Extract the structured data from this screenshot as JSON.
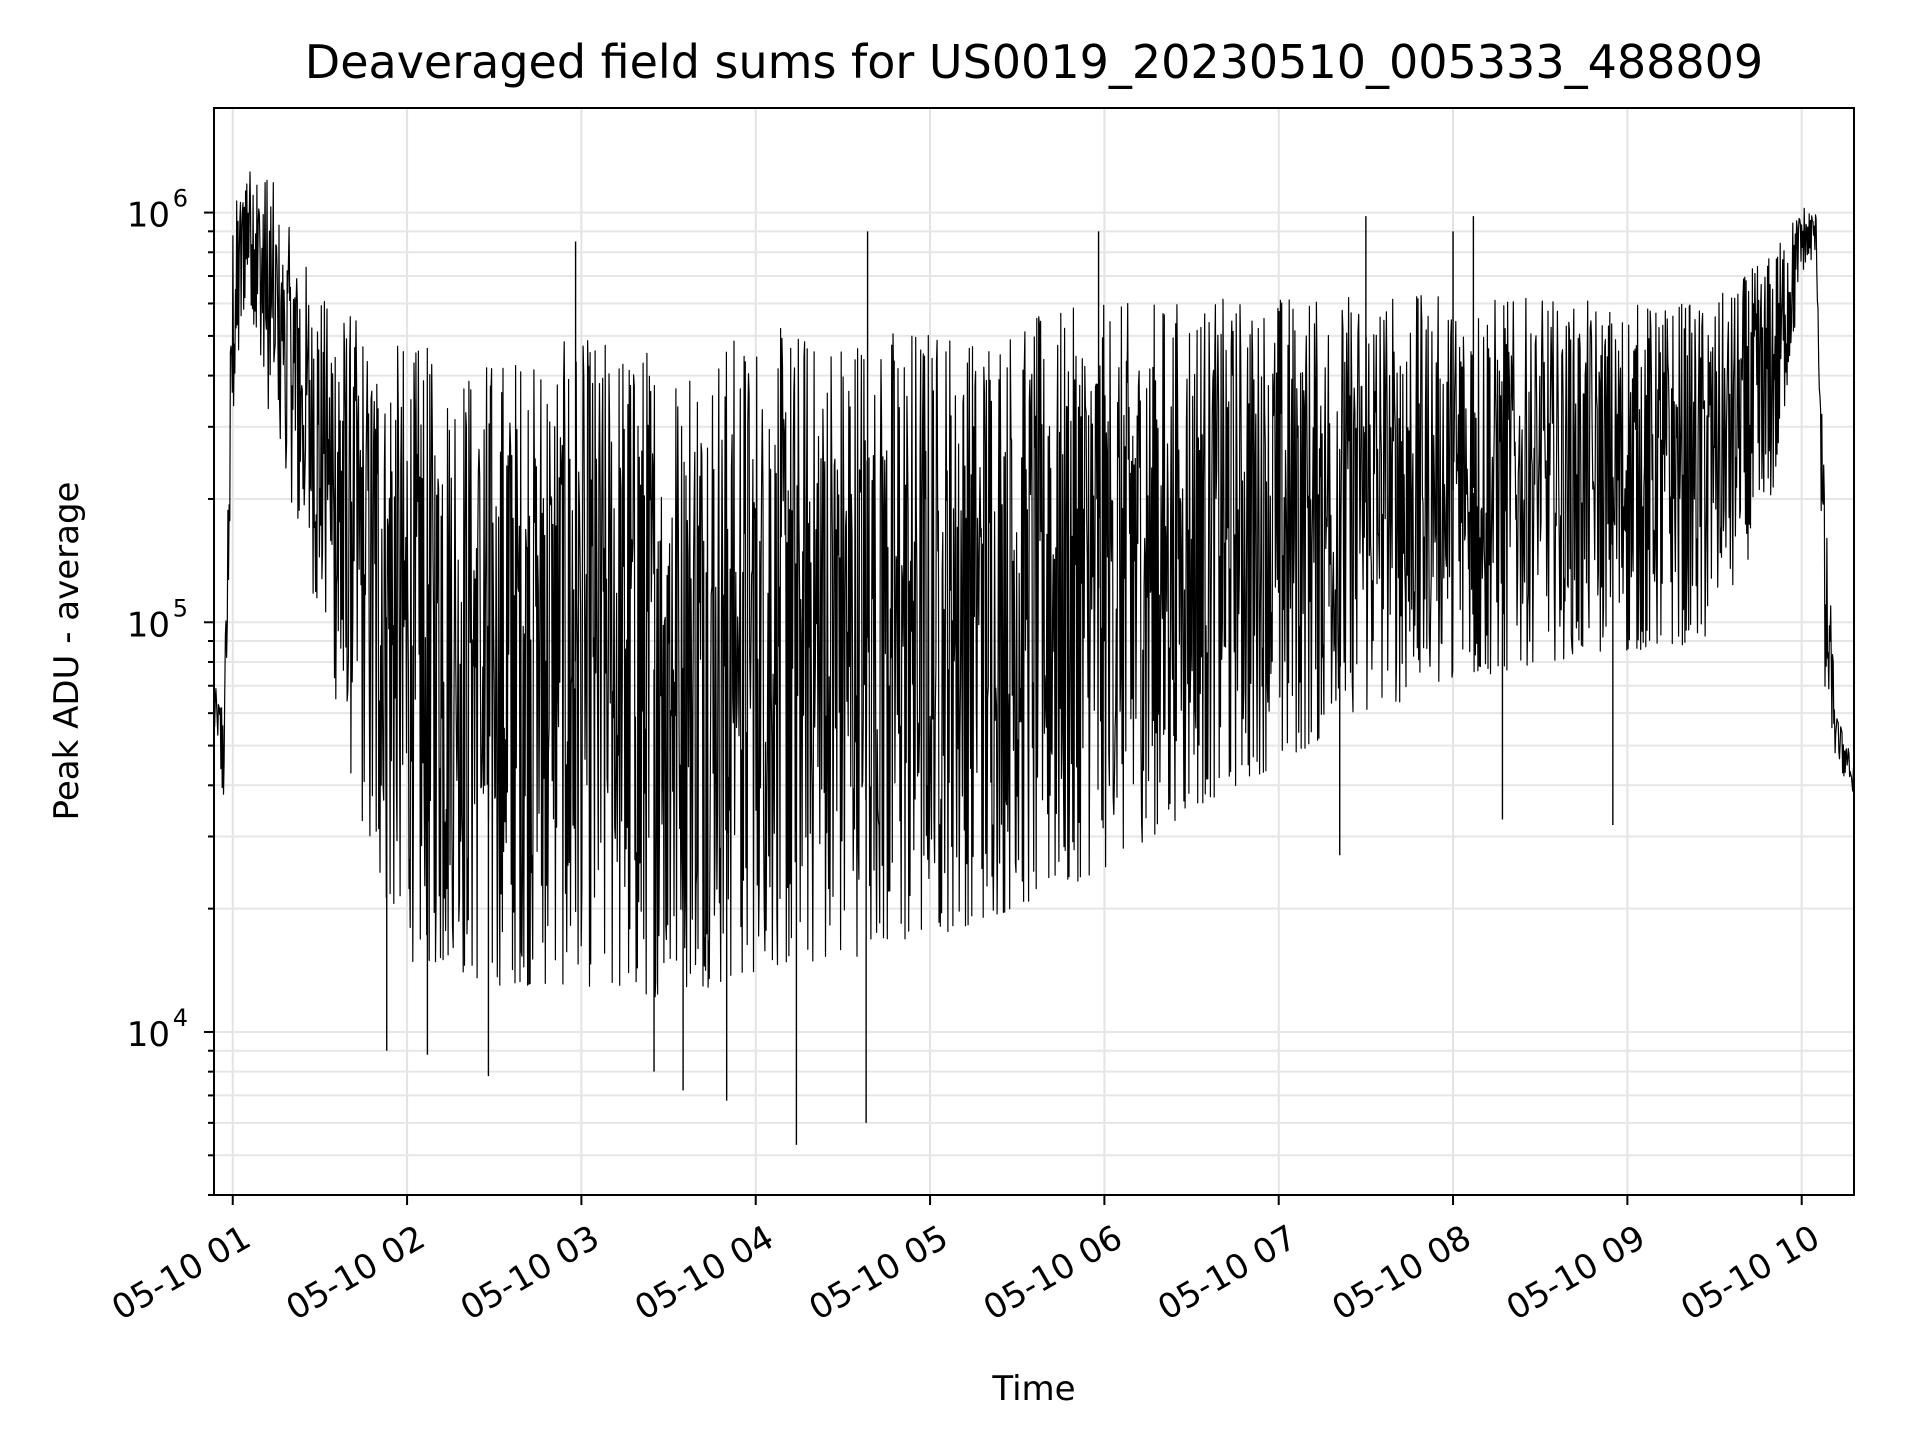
{
  "chart_data": {
    "type": "line",
    "title": "Deaveraged field sums for US0019_20230510_005333_488809",
    "xlabel": "Time",
    "ylabel": "Peak ADU - average",
    "y_scale": "log",
    "ylim": [
      4000,
      1800000
    ],
    "xlim": [
      "2023-05-10T00:53:33",
      "2023-05-10T10:18:00"
    ],
    "grid": true,
    "x_ticks": [
      {
        "t": "2023-05-10T01:00",
        "label": "05-10 01"
      },
      {
        "t": "2023-05-10T02:00",
        "label": "05-10 02"
      },
      {
        "t": "2023-05-10T03:00",
        "label": "05-10 03"
      },
      {
        "t": "2023-05-10T04:00",
        "label": "05-10 04"
      },
      {
        "t": "2023-05-10T05:00",
        "label": "05-10 05"
      },
      {
        "t": "2023-05-10T06:00",
        "label": "05-10 06"
      },
      {
        "t": "2023-05-10T07:00",
        "label": "05-10 07"
      },
      {
        "t": "2023-05-10T08:00",
        "label": "05-10 08"
      },
      {
        "t": "2023-05-10T09:00",
        "label": "05-10 09"
      },
      {
        "t": "2023-05-10T10:00",
        "label": "05-10 10"
      }
    ],
    "y_ticks": [
      {
        "value": 10000,
        "base": "10",
        "exp": "4"
      },
      {
        "value": 100000,
        "base": "10",
        "exp": "5"
      },
      {
        "value": 1000000,
        "base": "10",
        "exp": "6"
      }
    ],
    "series": [
      {
        "color": "#000000",
        "envelope": [
          {
            "t": "2023-05-10T00:53:33",
            "low": 55000,
            "high": 70000
          },
          {
            "t": "2023-05-10T00:57:00",
            "low": 35000,
            "high": 65000
          },
          {
            "t": "2023-05-10T01:00:00",
            "low": 300000,
            "high": 1000000
          },
          {
            "t": "2023-05-10T01:05:00",
            "low": 700000,
            "high": 1350000
          },
          {
            "t": "2023-05-10T01:12:00",
            "low": 300000,
            "high": 1300000
          },
          {
            "t": "2023-05-10T01:20:00",
            "low": 200000,
            "high": 900000
          },
          {
            "t": "2023-05-10T01:30:00",
            "low": 100000,
            "high": 650000
          },
          {
            "t": "2023-05-10T01:45:00",
            "low": 30000,
            "high": 550000
          },
          {
            "t": "2023-05-10T02:00:00",
            "low": 15000,
            "high": 480000
          },
          {
            "t": "2023-05-10T02:30:00",
            "low": 13000,
            "high": 450000
          },
          {
            "t": "2023-05-10T03:00:00",
            "low": 13000,
            "high": 500000
          },
          {
            "t": "2023-05-10T03:30:00",
            "low": 12000,
            "high": 480000
          },
          {
            "t": "2023-05-10T04:00:00",
            "low": 14000,
            "high": 520000
          },
          {
            "t": "2023-05-10T04:30:00",
            "low": 15000,
            "high": 540000
          },
          {
            "t": "2023-05-10T05:00:00",
            "low": 17000,
            "high": 540000
          },
          {
            "t": "2023-05-10T05:30:00",
            "low": 20000,
            "high": 560000
          },
          {
            "t": "2023-05-10T06:00:00",
            "low": 25000,
            "high": 600000
          },
          {
            "t": "2023-05-10T06:30:00",
            "low": 35000,
            "high": 620000
          },
          {
            "t": "2023-05-10T07:00:00",
            "low": 45000,
            "high": 640000
          },
          {
            "t": "2023-05-10T07:30:00",
            "low": 60000,
            "high": 640000
          },
          {
            "t": "2023-05-10T08:00:00",
            "low": 70000,
            "high": 630000
          },
          {
            "t": "2023-05-10T08:30:00",
            "low": 80000,
            "high": 620000
          },
          {
            "t": "2023-05-10T09:00:00",
            "low": 85000,
            "high": 600000
          },
          {
            "t": "2023-05-10T09:30:00",
            "low": 90000,
            "high": 620000
          },
          {
            "t": "2023-05-10T09:50:00",
            "low": 200000,
            "high": 800000
          },
          {
            "t": "2023-05-10T10:00:00",
            "low": 700000,
            "high": 1050000
          },
          {
            "t": "2023-05-10T10:05:00",
            "low": 800000,
            "high": 1000000
          },
          {
            "t": "2023-05-10T10:08:00",
            "low": 60000,
            "high": 200000
          },
          {
            "t": "2023-05-10T10:12:00",
            "low": 45000,
            "high": 60000
          },
          {
            "t": "2023-05-10T10:18:00",
            "low": 38000,
            "high": 45000
          }
        ],
        "spikes": [
          {
            "t": "2023-05-10T01:53:00",
            "value": 9000
          },
          {
            "t": "2023-05-10T02:07:00",
            "value": 8800
          },
          {
            "t": "2023-05-10T02:28:00",
            "value": 7800
          },
          {
            "t": "2023-05-10T02:58:00",
            "value": 850000
          },
          {
            "t": "2023-05-10T03:25:00",
            "value": 8000
          },
          {
            "t": "2023-05-10T03:35:00",
            "value": 7200
          },
          {
            "t": "2023-05-10T03:50:00",
            "value": 6800
          },
          {
            "t": "2023-05-10T04:14:00",
            "value": 5300
          },
          {
            "t": "2023-05-10T04:38:00",
            "value": 6000
          },
          {
            "t": "2023-05-10T04:38:30",
            "value": 900000
          },
          {
            "t": "2023-05-10T05:58:00",
            "value": 900000
          },
          {
            "t": "2023-05-10T07:21:00",
            "value": 27000
          },
          {
            "t": "2023-05-10T07:30:00",
            "value": 980000
          },
          {
            "t": "2023-05-10T08:00:00",
            "value": 900000
          },
          {
            "t": "2023-05-10T08:07:00",
            "value": 980000
          },
          {
            "t": "2023-05-10T08:17:00",
            "value": 33000
          },
          {
            "t": "2023-05-10T08:55:00",
            "value": 32000
          }
        ]
      }
    ]
  }
}
